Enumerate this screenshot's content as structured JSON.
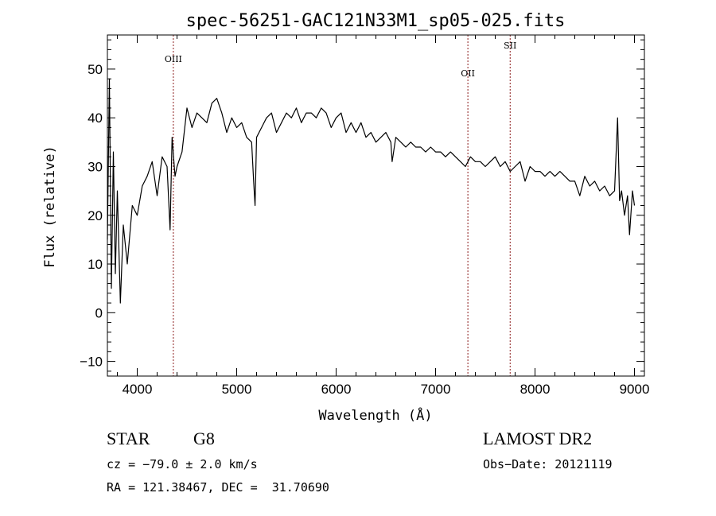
{
  "chart_data": {
    "type": "line",
    "title": "spec-56251-GAC121N33M1_sp05-025.fits",
    "xlabel": "Wavelength (Å)",
    "ylabel": "Flux (relative)",
    "xlim": [
      3700,
      9100
    ],
    "ylim": [
      -13,
      57
    ],
    "xticks": [
      4000,
      5000,
      6000,
      7000,
      8000,
      9000
    ],
    "yticks": [
      -10,
      0,
      10,
      20,
      30,
      40,
      50
    ],
    "grid": false,
    "series": [
      {
        "x": [
          3700,
          3720,
          3740,
          3760,
          3780,
          3800,
          3830,
          3860,
          3900,
          3950,
          4000,
          4050,
          4100,
          4150,
          4200,
          4250,
          4300,
          4330,
          4350,
          4380,
          4400,
          4450,
          4500,
          4550,
          4600,
          4650,
          4700,
          4750,
          4800,
          4850,
          4900,
          4950,
          5000,
          5050,
          5100,
          5150,
          5170,
          5185,
          5200,
          5250,
          5300,
          5350,
          5400,
          5450,
          5500,
          5550,
          5600,
          5650,
          5700,
          5750,
          5800,
          5850,
          5900,
          5950,
          6000,
          6050,
          6100,
          6150,
          6200,
          6250,
          6300,
          6350,
          6400,
          6450,
          6500,
          6550,
          6563,
          6600,
          6650,
          6700,
          6750,
          6800,
          6850,
          6900,
          6950,
          7000,
          7050,
          7100,
          7150,
          7200,
          7250,
          7300,
          7350,
          7400,
          7450,
          7500,
          7550,
          7600,
          7650,
          7700,
          7750,
          7800,
          7850,
          7900,
          7950,
          8000,
          8050,
          8100,
          8150,
          8200,
          8250,
          8300,
          8350,
          8400,
          8450,
          8500,
          8550,
          8600,
          8650,
          8700,
          8750,
          8800,
          8830,
          8850,
          8870,
          8900,
          8930,
          8950,
          8980,
          9000
        ],
        "y": [
          15,
          48,
          5,
          33,
          8,
          25,
          2,
          18,
          10,
          22,
          20,
          26,
          28,
          31,
          24,
          32,
          30,
          17,
          36,
          28,
          30,
          33,
          42,
          38,
          41,
          40,
          39,
          43,
          44,
          41,
          37,
          40,
          38,
          39,
          36,
          35,
          27,
          22,
          36,
          38,
          40,
          41,
          37,
          39,
          41,
          40,
          42,
          39,
          41,
          41,
          40,
          42,
          41,
          38,
          40,
          41,
          37,
          39,
          37,
          39,
          36,
          37,
          35,
          36,
          37,
          35,
          31,
          36,
          35,
          34,
          35,
          34,
          34,
          33,
          34,
          33,
          33,
          32,
          33,
          32,
          31,
          30,
          32,
          31,
          31,
          30,
          31,
          32,
          30,
          31,
          29,
          30,
          31,
          27,
          30,
          29,
          29,
          28,
          29,
          28,
          29,
          28,
          27,
          27,
          24,
          28,
          26,
          27,
          25,
          26,
          24,
          25,
          40,
          23,
          25,
          20,
          24,
          16,
          25,
          22
        ]
      }
    ],
    "annotations": [
      {
        "label": "OIII",
        "x": 4363
      },
      {
        "label": "OII",
        "x": 7325
      },
      {
        "label": "SII",
        "x": 7750
      }
    ]
  },
  "info": {
    "object_class": "STAR",
    "subclass": "G8",
    "survey": "LAMOST DR2",
    "cz": "cz = −79.0 ± 2.0 km/s",
    "obs_date": "Obs−Date: 20121119",
    "coords": "RA = 121.38467, DEC =  31.70690"
  },
  "colors": {
    "spectrum": "#000000",
    "line_marker": "#8b1a1a"
  }
}
